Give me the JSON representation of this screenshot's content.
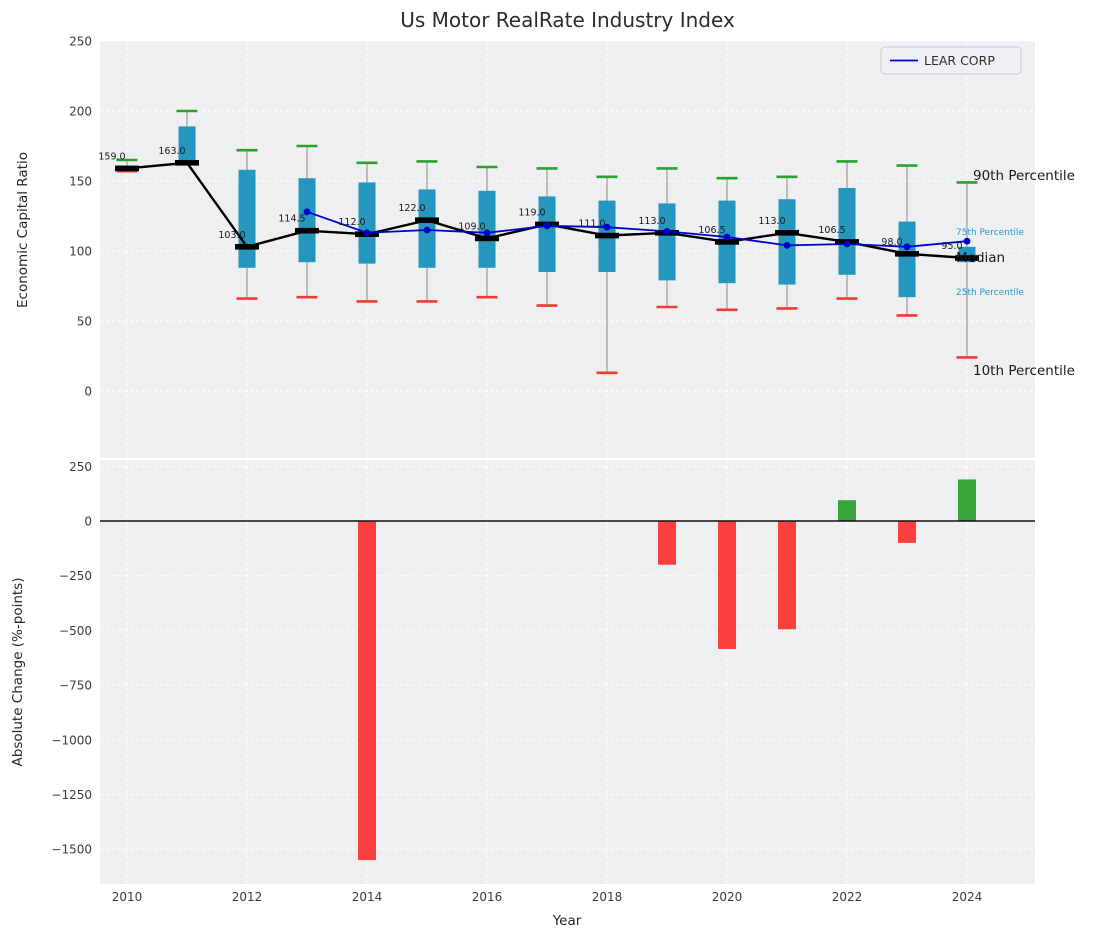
{
  "title": "Us Motor RealRate Industry Index",
  "legend": {
    "label": "LEAR CORP"
  },
  "annotations": {
    "p90": "90th Percentile",
    "p75": "75th Percentile",
    "median": "Median",
    "p25": "25th Percentile",
    "p10": "10th Percentile"
  },
  "colors": {
    "panel": "#edeff1",
    "grid": "#ffffff",
    "box": "#2596be",
    "whisker": "#9a9a9a",
    "cap_hi": "#2ca02c",
    "cap_lo": "#ef3b33",
    "median": "#000000",
    "lear": "#0000cc",
    "bar_pos": "#38a538",
    "bar_neg": "#fb3e3e",
    "cyan": "#1f9fd4",
    "text_dark": "#1a1a1a",
    "tick": "#3c3c3c",
    "axis_label": "#262626",
    "legend_bg": "#eef0f4",
    "legend_border": "#c8cad2"
  },
  "chart_data": [
    {
      "type": "box-whisker+line",
      "title": "Us Motor RealRate Industry Index",
      "ylabel": "Economic Capital Ratio",
      "ylim": [
        -48,
        250
      ],
      "yticks": [
        0,
        50,
        100,
        150,
        200,
        250
      ],
      "xticks": [
        2010,
        2012,
        2014,
        2016,
        2018,
        2020,
        2022,
        2024
      ],
      "grid": true,
      "legend_position": "upper right",
      "years": [
        2010,
        2011,
        2012,
        2013,
        2014,
        2015,
        2016,
        2017,
        2018,
        2019,
        2020,
        2021,
        2022,
        2023,
        2024
      ],
      "median": [
        159,
        163,
        103,
        114.5,
        112,
        122,
        109,
        119,
        111,
        113,
        106.5,
        113,
        106.5,
        98,
        95
      ],
      "median_labels": [
        "159.0",
        "163.0",
        "103.0",
        "114.5",
        "112.0",
        "122.0",
        "109.0",
        "119.0",
        "111.0",
        "113.0",
        "106.5",
        "113.0",
        "106.5",
        "98.0",
        "95.0"
      ],
      "q1": [
        158,
        165,
        88,
        92,
        91,
        88,
        88,
        85,
        85,
        79,
        77,
        76,
        83,
        67,
        92
      ],
      "q3": [
        161,
        189,
        158,
        152,
        149,
        144,
        143,
        139,
        136,
        134,
        136,
        137,
        145,
        121,
        103
      ],
      "p90": [
        165,
        200,
        172,
        175,
        163,
        164,
        160,
        159,
        153,
        159,
        152,
        153,
        164,
        161,
        149
      ],
      "p10": [
        157,
        163,
        66,
        67,
        64,
        64,
        67,
        61,
        13,
        60,
        58,
        59,
        66,
        54,
        24
      ],
      "series": [
        {
          "name": "LEAR CORP",
          "values": [
            null,
            null,
            null,
            128,
            113,
            115,
            113,
            118,
            117,
            114,
            110,
            104,
            105,
            103,
            107
          ]
        }
      ]
    },
    {
      "type": "bar",
      "ylabel": "Absolute Change (%-points)",
      "xlabel": "Year",
      "ylim": [
        -1660,
        278
      ],
      "yticks": [
        250,
        0,
        -250,
        -500,
        -750,
        -1000,
        -1250,
        -1500
      ],
      "xticks": [
        2010,
        2012,
        2014,
        2016,
        2018,
        2020,
        2022,
        2024
      ],
      "grid": true,
      "years": [
        2010,
        2011,
        2012,
        2013,
        2014,
        2015,
        2016,
        2017,
        2018,
        2019,
        2020,
        2021,
        2022,
        2023,
        2024
      ],
      "values": [
        0,
        0,
        0,
        0,
        -1550,
        0,
        0,
        0,
        0,
        -200,
        -585,
        -495,
        95,
        -100,
        190
      ]
    }
  ]
}
